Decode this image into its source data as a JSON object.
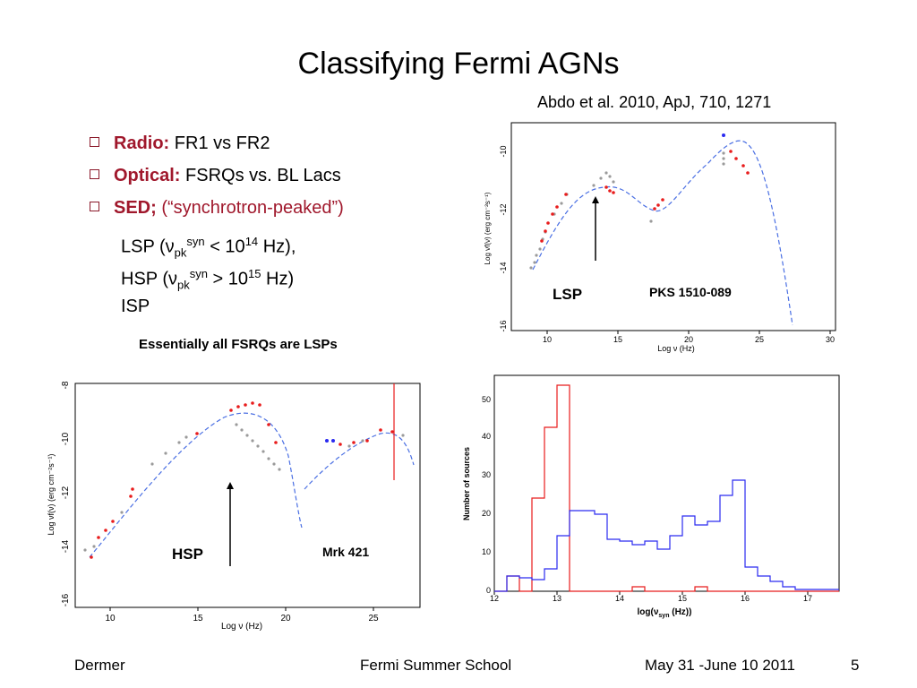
{
  "slide": {
    "title": "Classifying Fermi AGNs",
    "citation": "Abdo et al. 2010, ApJ, 710, 1271",
    "bullets": [
      {
        "key": "Radio:",
        "value": "FR1 vs FR2"
      },
      {
        "key": "Optical:",
        "value": "FSRQs vs. BL Lacs"
      },
      {
        "key": "SED;",
        "value": "(“synchrotron-peaked”)"
      }
    ],
    "sub": {
      "lsp_prefix": "LSP (",
      "nu": "ν",
      "pk": "pk",
      "syn": "syn",
      "lsp_cmp": " < 10",
      "lsp_exp": "14",
      "lsp_suffix": " Hz),",
      "hsp_prefix": "HSP (",
      "hsp_cmp": " > 10",
      "hsp_exp": "15",
      "hsp_suffix": " Hz)",
      "isp": "ISP"
    },
    "fsrq_note": "Essentially all FSRQs are LSPs"
  },
  "plots": {
    "pks": {
      "label_class": "LSP",
      "label_source": "PKS 1510-089",
      "xlabel": "Log ν (Hz)",
      "ylabel": "Log νf(ν) (erg cm⁻²s⁻¹)",
      "xticks": [
        "10",
        "15",
        "20",
        "25",
        "30"
      ],
      "yticks": [
        "-10",
        "-12",
        "-14",
        "-16"
      ]
    },
    "mrk": {
      "label_class": "HSP",
      "label_source": "Mrk 421",
      "xlabel": "Log ν (Hz)",
      "ylabel": "Log νf(ν) (erg cm⁻²s⁻¹)",
      "xticks": [
        "10",
        "15",
        "20",
        "25"
      ],
      "yticks": [
        "-8",
        "-10",
        "-12",
        "-14",
        "-16"
      ]
    },
    "hist": {
      "xlabel": "log(ν",
      "xlabel_sub": "syn",
      "xlabel_end": " (Hz))",
      "ylabel": "Number of sources",
      "xticks": [
        "12",
        "13",
        "14",
        "15",
        "16",
        "17"
      ],
      "yticks": [
        "0",
        "10",
        "20",
        "30",
        "40",
        "50"
      ]
    }
  },
  "colors": {
    "accent": "#a0182c",
    "model": "#4a6fe3",
    "data_red": "#e81c1c",
    "data_grey": "#9a9a9a",
    "hist_blue": "#2a2af0"
  },
  "footer": {
    "left": "Dermer",
    "center": "Fermi Summer School",
    "right": "May 31 -June 10 2011",
    "page": "5"
  }
}
